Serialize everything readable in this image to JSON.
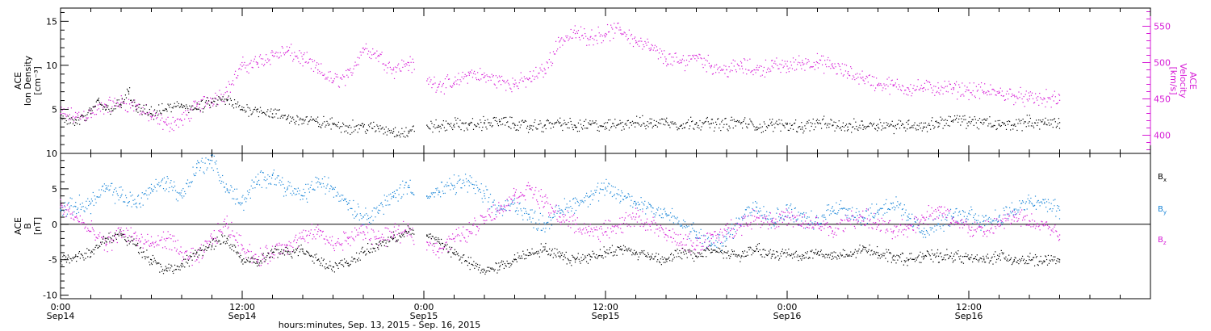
{
  "colors": {
    "black": "#000000",
    "magenta": "#d61ad6",
    "blue": "#1a86d8"
  },
  "xaxis": {
    "title": "hours:minutes, Sep. 13, 2015 - Sep. 16, 2015",
    "ticks": [
      {
        "h": 0,
        "time": "0:00",
        "date": "Sep14"
      },
      {
        "h": 12,
        "time": "12:00",
        "date": "Sep14"
      },
      {
        "h": 24,
        "time": "0:00",
        "date": "Sep15"
      },
      {
        "h": 36,
        "time": "12:00",
        "date": "Sep15"
      },
      {
        "h": 48,
        "time": "0:00",
        "date": "Sep16"
      },
      {
        "h": 60,
        "time": "12:00",
        "date": "Sep16"
      }
    ]
  },
  "chart_data": [
    {
      "type": "scatter",
      "panel": "top",
      "xlim_hours": [
        0,
        72
      ],
      "data_gaps_hours": [
        [
          23.4,
          24.2
        ]
      ],
      "data_end_hours": 66.4,
      "left_axis": {
        "label_lines": [
          "ACE",
          "Ion Density",
          "[cm⁻³]"
        ],
        "ylim": [
          0,
          16.5
        ],
        "ticks": [
          5,
          10,
          15
        ]
      },
      "right_axis": {
        "label_lines": [
          "ACE",
          "Velocity",
          "[km/s]"
        ],
        "ylim": [
          375,
          575
        ],
        "ticks": [
          400,
          450,
          500,
          550
        ]
      },
      "series": [
        {
          "name": "",
          "axis": "left",
          "color_key": "black",
          "x": [
            0,
            1,
            2,
            2.5,
            3,
            4,
            4.5,
            5,
            6,
            7,
            8,
            9,
            10,
            11,
            12,
            13,
            14,
            15,
            16,
            17,
            18,
            19,
            20,
            21,
            22,
            23,
            24.2,
            25,
            26,
            27,
            28,
            29,
            30,
            31,
            32,
            33,
            34,
            35,
            36,
            37,
            38,
            39,
            40,
            41,
            42,
            43,
            44,
            45,
            46,
            47,
            48,
            49,
            50,
            51,
            52,
            53,
            54,
            55,
            56,
            57,
            58,
            59,
            60,
            61,
            62,
            63,
            64,
            65,
            66
          ],
          "y": [
            4.0,
            3.5,
            4.5,
            6.0,
            5.0,
            5.5,
            7.0,
            5.0,
            4.5,
            5.0,
            5.5,
            5.0,
            5.8,
            6.0,
            5.0,
            5.0,
            4.5,
            4.0,
            3.8,
            3.5,
            3.3,
            3.0,
            3.0,
            2.8,
            2.5,
            2.3,
            3.2,
            3.0,
            3.3,
            3.2,
            3.4,
            3.6,
            3.3,
            3.0,
            3.2,
            3.5,
            3.0,
            3.3,
            3.0,
            3.4,
            3.5,
            3.4,
            3.6,
            3.2,
            3.5,
            3.4,
            3.3,
            3.5,
            3.0,
            3.2,
            3.3,
            3.0,
            3.5,
            3.2,
            3.0,
            3.2,
            3.3,
            3.1,
            3.3,
            3.0,
            3.5,
            3.8,
            3.6,
            3.5,
            3.2,
            3.3,
            3.6,
            3.4,
            3.5
          ]
        },
        {
          "name": "",
          "axis": "right",
          "color_key": "magenta",
          "x": [
            0,
            1,
            2,
            3,
            4,
            5,
            6,
            7,
            8,
            9,
            10,
            11,
            12,
            13,
            14,
            15,
            16,
            17,
            18,
            19,
            20,
            21,
            22,
            23,
            24.2,
            25,
            26,
            27,
            28,
            29,
            30,
            31,
            32,
            33,
            34,
            35,
            36,
            37,
            38,
            39,
            40,
            41,
            42,
            43,
            44,
            45,
            46,
            47,
            48,
            49,
            50,
            51,
            52,
            53,
            54,
            55,
            56,
            57,
            58,
            59,
            60,
            61,
            62,
            63,
            64,
            65,
            66
          ],
          "y": [
            430,
            425,
            430,
            440,
            445,
            440,
            425,
            415,
            420,
            440,
            450,
            460,
            495,
            500,
            510,
            515,
            505,
            490,
            475,
            480,
            520,
            510,
            490,
            500,
            475,
            470,
            470,
            485,
            480,
            475,
            470,
            478,
            490,
            530,
            540,
            535,
            540,
            545,
            530,
            520,
            505,
            500,
            510,
            495,
            490,
            495,
            490,
            495,
            495,
            500,
            500,
            495,
            485,
            480,
            470,
            468,
            465,
            465,
            465,
            463,
            462,
            460,
            458,
            455,
            450,
            450,
            448
          ]
        }
      ]
    },
    {
      "type": "scatter",
      "panel": "bottom",
      "xlim_hours": [
        0,
        72
      ],
      "data_gaps_hours": [
        [
          23.4,
          24.2
        ]
      ],
      "data_end_hours": 66.4,
      "axis": {
        "label_lines": [
          "ACE",
          "B",
          "[nT]"
        ],
        "ylim": [
          -10.5,
          10
        ],
        "ticks": [
          -10,
          -5,
          0,
          5,
          10
        ],
        "zero_line": true
      },
      "legend_position": "right",
      "series": [
        {
          "name": "Bx",
          "legend_base": "B",
          "legend_sub": "x",
          "color_key": "black",
          "x": [
            0,
            1,
            2,
            3,
            4,
            5,
            6,
            7,
            8,
            9,
            10,
            11,
            12,
            13,
            14,
            15,
            16,
            17,
            18,
            19,
            20,
            21,
            22,
            23,
            24.2,
            25,
            26,
            27,
            28,
            29,
            30,
            31,
            32,
            33,
            34,
            35,
            36,
            37,
            38,
            39,
            40,
            41,
            42,
            43,
            44,
            45,
            46,
            47,
            48,
            49,
            50,
            51,
            52,
            53,
            54,
            55,
            56,
            57,
            58,
            59,
            60,
            61,
            62,
            63,
            64,
            65,
            66
          ],
          "y": [
            -5.0,
            -4.5,
            -4.0,
            -2.0,
            -1.5,
            -3.0,
            -5.0,
            -6.5,
            -6.0,
            -4.0,
            -3.0,
            -2.0,
            -5.0,
            -5.5,
            -4.0,
            -4.0,
            -3.5,
            -5.0,
            -6.0,
            -5.5,
            -4.0,
            -3.0,
            -2.0,
            -1.0,
            -1.5,
            -2.5,
            -4.0,
            -5.5,
            -6.5,
            -6.0,
            -5.0,
            -4.0,
            -3.5,
            -4.5,
            -5.0,
            -4.5,
            -4.0,
            -3.5,
            -4.0,
            -4.5,
            -5.0,
            -4.0,
            -4.5,
            -3.5,
            -4.0,
            -4.5,
            -3.5,
            -4.5,
            -4.0,
            -4.5,
            -4.0,
            -4.5,
            -4.5,
            -3.5,
            -4.0,
            -4.5,
            -5.0,
            -4.5,
            -4.5,
            -4.5,
            -4.8,
            -5.0,
            -4.5,
            -5.0,
            -5.0,
            -5.2,
            -5.0
          ]
        },
        {
          "name": "By",
          "legend_base": "B",
          "legend_sub": "y",
          "color_key": "blue",
          "x": [
            0,
            1,
            2,
            3,
            4,
            5,
            6,
            7,
            8,
            9,
            10,
            11,
            12,
            13,
            14,
            15,
            16,
            17,
            18,
            19,
            20,
            21,
            22,
            23,
            24.2,
            25,
            26,
            27,
            28,
            29,
            30,
            31,
            32,
            33,
            34,
            35,
            36,
            37,
            38,
            39,
            40,
            41,
            42,
            43,
            44,
            45,
            46,
            47,
            48,
            49,
            50,
            51,
            52,
            53,
            54,
            55,
            56,
            57,
            58,
            59,
            60,
            61,
            62,
            63,
            64,
            65,
            66
          ],
          "y": [
            2.0,
            2.5,
            3.0,
            5.0,
            4.0,
            3.0,
            5.0,
            6.0,
            4.0,
            8.0,
            9.0,
            5.0,
            3.0,
            6.0,
            7.0,
            5.0,
            4.0,
            6.0,
            5.0,
            3.0,
            1.0,
            2.0,
            4.0,
            5.5,
            4.0,
            4.5,
            5.5,
            6.0,
            4.0,
            2.0,
            3.0,
            1.0,
            0.0,
            2.0,
            3.0,
            4.0,
            5.0,
            4.0,
            3.0,
            2.5,
            1.5,
            0.0,
            -1.5,
            -3.0,
            -2.0,
            1.0,
            3.0,
            0.5,
            2.0,
            1.0,
            0.0,
            2.5,
            2.0,
            1.0,
            2.0,
            3.0,
            1.0,
            -1.0,
            0.0,
            1.0,
            1.5,
            0.5,
            1.0,
            2.0,
            3.0,
            3.0,
            2.0
          ]
        },
        {
          "name": "Bz",
          "legend_base": "B",
          "legend_sub": "z",
          "color_key": "magenta",
          "x": [
            0,
            1,
            2,
            3,
            4,
            5,
            6,
            7,
            8,
            9,
            10,
            11,
            12,
            13,
            14,
            15,
            16,
            17,
            18,
            19,
            20,
            21,
            22,
            23,
            24.2,
            25,
            26,
            27,
            28,
            29,
            30,
            31,
            32,
            33,
            34,
            35,
            36,
            37,
            38,
            39,
            40,
            41,
            42,
            43,
            44,
            45,
            46,
            47,
            48,
            49,
            50,
            51,
            52,
            53,
            54,
            55,
            56,
            57,
            58,
            59,
            60,
            61,
            62,
            63,
            64,
            65,
            66
          ],
          "y": [
            2.5,
            1.0,
            -1.0,
            -3.0,
            -1.0,
            -2.0,
            -3.0,
            -2.0,
            -4.0,
            -5.0,
            -2.0,
            0.0,
            -3.0,
            -5.0,
            -4.0,
            -3.0,
            -2.0,
            -1.0,
            -3.0,
            -2.0,
            -1.0,
            -2.0,
            -1.5,
            -1.0,
            -2.5,
            -3.5,
            -2.0,
            -1.0,
            1.0,
            2.0,
            4.0,
            5.0,
            3.0,
            1.0,
            0.0,
            -1.0,
            -1.0,
            0.0,
            1.0,
            0.0,
            -1.5,
            -2.5,
            -3.0,
            -2.0,
            -1.0,
            0.0,
            1.0,
            0.5,
            1.0,
            0.0,
            0.0,
            -1.0,
            0.5,
            1.0,
            0.0,
            -1.0,
            -0.5,
            1.0,
            2.0,
            0.5,
            -0.5,
            -1.0,
            0.0,
            1.0,
            0.5,
            0.0,
            -1.5
          ]
        }
      ]
    }
  ]
}
